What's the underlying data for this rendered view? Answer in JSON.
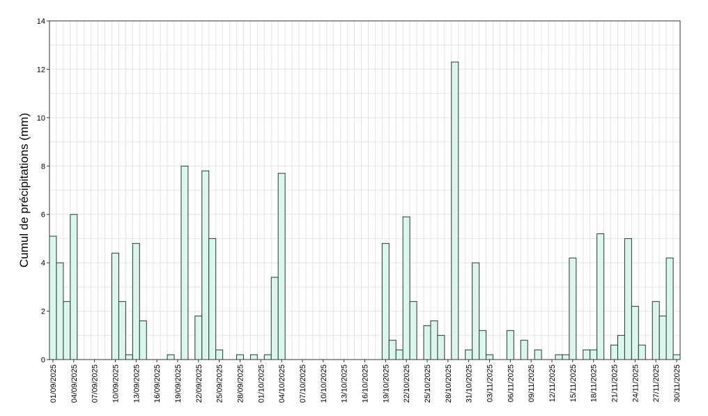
{
  "chart_data": {
    "type": "bar",
    "title": "",
    "xlabel": "",
    "ylabel": "Cumul de précipitations (mm)",
    "ylim": [
      0,
      14
    ],
    "yticks": [
      0,
      2,
      4,
      6,
      8,
      10,
      12,
      14
    ],
    "grid": true,
    "bar_color": "#d9f7ec",
    "bar_edge_color": "#333333",
    "grid_color": "#e4e4e4",
    "categories": [
      "01/09/2025",
      "02/09/2025",
      "03/09/2025",
      "04/09/2025",
      "05/09/2025",
      "06/09/2025",
      "07/09/2025",
      "08/09/2025",
      "09/09/2025",
      "10/09/2025",
      "11/09/2025",
      "12/09/2025",
      "13/09/2025",
      "14/09/2025",
      "15/09/2025",
      "16/09/2025",
      "17/09/2025",
      "18/09/2025",
      "19/09/2025",
      "20/09/2025",
      "21/09/2025",
      "22/09/2025",
      "23/09/2025",
      "24/09/2025",
      "25/09/2025",
      "26/09/2025",
      "27/09/2025",
      "28/09/2025",
      "29/09/2025",
      "30/09/2025",
      "01/10/2025",
      "02/10/2025",
      "03/10/2025",
      "04/10/2025",
      "05/10/2025",
      "06/10/2025",
      "07/10/2025",
      "08/10/2025",
      "09/10/2025",
      "10/10/2025",
      "11/10/2025",
      "12/10/2025",
      "13/10/2025",
      "14/10/2025",
      "15/10/2025",
      "16/10/2025",
      "17/10/2025",
      "18/10/2025",
      "19/10/2025",
      "20/10/2025",
      "21/10/2025",
      "22/10/2025",
      "23/10/2025",
      "24/10/2025",
      "25/10/2025",
      "26/10/2025",
      "27/10/2025",
      "28/10/2025",
      "29/10/2025",
      "30/10/2025",
      "31/10/2025",
      "01/11/2025",
      "02/11/2025",
      "03/11/2025",
      "04/11/2025",
      "05/11/2025",
      "06/11/2025",
      "07/11/2025",
      "08/11/2025",
      "09/11/2025",
      "10/11/2025",
      "11/11/2025",
      "12/11/2025",
      "13/11/2025",
      "14/11/2025",
      "15/11/2025",
      "16/11/2025",
      "17/11/2025",
      "18/11/2025",
      "19/11/2025",
      "20/11/2025",
      "21/11/2025",
      "22/11/2025",
      "23/11/2025",
      "24/11/2025",
      "25/11/2025",
      "26/11/2025",
      "27/11/2025",
      "28/11/2025",
      "29/11/2025",
      "30/11/2025"
    ],
    "values": [
      5.1,
      4.0,
      2.4,
      6.0,
      0,
      0,
      0,
      0,
      0,
      4.4,
      2.4,
      0.2,
      4.8,
      1.6,
      0,
      0,
      0,
      0.2,
      0,
      8.0,
      0,
      1.8,
      7.8,
      5.0,
      0.4,
      0,
      0,
      0.2,
      0,
      0.2,
      0,
      0.2,
      3.4,
      7.7,
      0,
      0,
      0,
      0,
      0,
      0,
      0,
      0,
      0,
      0,
      0,
      0,
      0,
      0,
      4.8,
      0.8,
      0.4,
      5.9,
      2.4,
      0,
      1.4,
      1.6,
      1.0,
      0,
      12.3,
      0,
      0.4,
      4.0,
      1.2,
      0.2,
      0,
      0,
      1.2,
      0,
      0.8,
      0,
      0.4,
      0,
      0,
      0.2,
      0.2,
      4.2,
      0,
      0.4,
      0.4,
      5.2,
      0,
      0.6,
      1.0,
      5.0,
      2.2,
      0.6,
      0,
      2.4,
      1.8,
      4.2,
      0.2
    ],
    "xtick_labels": [
      "01/09/2025",
      "04/09/2025",
      "07/09/2025",
      "10/09/2025",
      "13/09/2025",
      "16/09/2025",
      "19/09/2025",
      "22/09/2025",
      "25/09/2025",
      "28/09/2025",
      "01/10/2025",
      "04/10/2025",
      "07/10/2025",
      "10/10/2025",
      "13/10/2025",
      "16/10/2025",
      "19/10/2025",
      "22/10/2025",
      "25/10/2025",
      "28/10/2025",
      "31/10/2025",
      "03/11/2025",
      "06/11/2025",
      "09/11/2025",
      "12/11/2025",
      "15/11/2025",
      "18/11/2025",
      "21/11/2025",
      "24/11/2025",
      "27/11/2025",
      "30/11/2025"
    ]
  }
}
